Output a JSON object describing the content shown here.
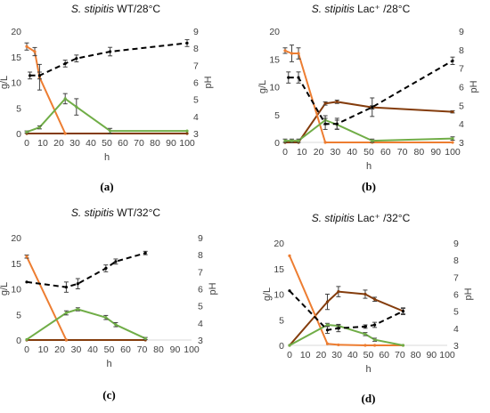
{
  "colors": {
    "ph": "#000000",
    "lactose": "#ed7d31",
    "ethanol": "#70ad47",
    "biomass": "#843c0c",
    "axis": "#d9d9d9",
    "text": "#404040"
  },
  "chart_data": [
    {
      "type": "line",
      "title_italic": "S. stipitis",
      "title_rest": " WT/28°C",
      "panel_label": "(a)",
      "xlabel": "h",
      "ylabel": "g/L",
      "y2label": "pH",
      "xlim": [
        0,
        100
      ],
      "xticks": [
        0,
        10,
        20,
        30,
        40,
        50,
        60,
        70,
        80,
        90,
        100
      ],
      "ylim": [
        0,
        20
      ],
      "yticks": [
        0,
        5,
        10,
        15,
        20
      ],
      "y2lim": [
        3,
        9
      ],
      "y2ticks": [
        3,
        4,
        5,
        6,
        7,
        8,
        9
      ],
      "series": [
        {
          "key": "ph",
          "axis": "right",
          "style": "dashed",
          "x": [
            2,
            8,
            24,
            31,
            52,
            100
          ],
          "y": [
            6.4,
            6.4,
            7.1,
            7.4,
            7.8,
            8.3
          ],
          "err": [
            0.2,
            0.2,
            0.2,
            0.2,
            0.25,
            0.2
          ]
        },
        {
          "key": "lactose",
          "axis": "left",
          "style": "solid",
          "x": [
            0,
            5,
            8,
            24
          ],
          "y": [
            17,
            16,
            11,
            0
          ],
          "err": [
            0.7,
            0.8,
            2.5,
            0
          ]
        },
        {
          "key": "ethanol",
          "axis": "left",
          "style": "solid",
          "x": [
            0,
            8,
            24,
            31,
            52,
            100
          ],
          "y": [
            0.3,
            1.2,
            6.8,
            5.2,
            0.5,
            0.5
          ],
          "err": [
            0.2,
            0.3,
            1.0,
            1.6,
            0.5,
            0
          ]
        },
        {
          "key": "biomass",
          "axis": "left",
          "style": "solid",
          "x": [
            0,
            100
          ],
          "y": [
            0,
            0
          ],
          "err": [
            0,
            0
          ]
        }
      ]
    },
    {
      "type": "line",
      "title_italic": "S. stipitis",
      "title_rest": " Lac⁺ /28°C",
      "panel_label": "(b)",
      "xlabel": "h",
      "ylabel": "g/L",
      "y2label": "pH",
      "xlim": [
        0,
        100
      ],
      "xticks": [
        0,
        10,
        20,
        30,
        40,
        50,
        60,
        70,
        80,
        90,
        100
      ],
      "ylim": [
        0,
        20
      ],
      "yticks": [
        0,
        5,
        10,
        15,
        20
      ],
      "y2lim": [
        3,
        9
      ],
      "y2ticks": [
        3,
        4,
        5,
        6,
        7,
        8,
        9
      ],
      "series": [
        {
          "key": "ph",
          "axis": "right",
          "style": "dashed",
          "x": [
            2,
            8,
            24,
            31,
            52,
            100
          ],
          "y": [
            6.5,
            6.5,
            4.0,
            4.0,
            4.9,
            7.4
          ],
          "err": [
            0.3,
            0.3,
            0.3,
            0.3,
            0.5,
            0.2
          ]
        },
        {
          "key": "lactose",
          "axis": "left",
          "style": "solid",
          "x": [
            0,
            4,
            8,
            24,
            52,
            100
          ],
          "y": [
            16.5,
            16,
            16,
            0,
            0,
            0
          ],
          "err": [
            0.5,
            1.5,
            1,
            0,
            0,
            0
          ]
        },
        {
          "key": "ethanol",
          "axis": "left",
          "style": "solid",
          "x": [
            0,
            4,
            8,
            24,
            31,
            52,
            100
          ],
          "y": [
            0.3,
            0.3,
            0.3,
            4,
            3.2,
            0.3,
            0.7
          ],
          "err": [
            0.3,
            0.3,
            0.3,
            0.8,
            0.8,
            0.3,
            0.3
          ]
        },
        {
          "key": "biomass",
          "axis": "left",
          "style": "solid",
          "x": [
            0,
            8,
            24,
            31,
            52,
            100
          ],
          "y": [
            0,
            0,
            7,
            7.3,
            6.3,
            5.5
          ],
          "err": [
            0,
            0,
            0.3,
            0.3,
            0.3,
            0.2
          ]
        }
      ]
    },
    {
      "type": "line",
      "title_italic": "S. stipitis",
      "title_rest": " WT/32°C",
      "panel_label": "(c)",
      "xlabel": "h",
      "ylabel": "g/L",
      "y2label": "pH",
      "xlim": [
        0,
        100
      ],
      "xticks": [
        0,
        10,
        20,
        30,
        40,
        50,
        60,
        70,
        80,
        90,
        100
      ],
      "ylim": [
        0,
        20
      ],
      "yticks": [
        0,
        5,
        10,
        15,
        20
      ],
      "y2lim": [
        3,
        9
      ],
      "y2ticks": [
        3,
        4,
        5,
        6,
        7,
        8,
        9
      ],
      "series": [
        {
          "key": "ph",
          "axis": "right",
          "style": "dashed",
          "x": [
            0,
            24,
            31,
            48,
            54,
            72
          ],
          "y": [
            6.4,
            6.1,
            6.3,
            7.2,
            7.6,
            8.1
          ],
          "err": [
            0,
            0.3,
            0.3,
            0.2,
            0.15,
            0.1
          ]
        },
        {
          "key": "lactose",
          "axis": "left",
          "style": "solid",
          "x": [
            0,
            24
          ],
          "y": [
            16.3,
            0
          ],
          "err": [
            0.3,
            0
          ]
        },
        {
          "key": "ethanol",
          "axis": "left",
          "style": "solid",
          "x": [
            0,
            24,
            31,
            48,
            54,
            72
          ],
          "y": [
            0.1,
            5.3,
            6,
            4.4,
            3,
            0.3
          ],
          "err": [
            0,
            0.4,
            0.3,
            0.4,
            0.4,
            0.2
          ]
        },
        {
          "key": "biomass",
          "axis": "left",
          "style": "solid",
          "x": [
            0,
            24,
            72
          ],
          "y": [
            0,
            0,
            0
          ],
          "err": [
            0,
            0,
            0
          ]
        }
      ]
    },
    {
      "type": "line",
      "title_italic": "S. stipitis",
      "title_rest": " Lac⁺ /32°C",
      "panel_label": "(d)",
      "xlabel": "h",
      "ylabel": "g/L",
      "y2label": "pH",
      "xlim": [
        0,
        100
      ],
      "xticks": [
        0,
        10,
        20,
        30,
        40,
        50,
        60,
        70,
        80,
        90,
        100
      ],
      "ylim": [
        0,
        20
      ],
      "yticks": [
        0,
        5,
        10,
        15,
        20
      ],
      "y2lim": [
        3,
        9
      ],
      "y2ticks": [
        3,
        4,
        5,
        6,
        7,
        8,
        9
      ],
      "series": [
        {
          "key": "ph",
          "axis": "right",
          "style": "dashed",
          "x": [
            0,
            24,
            31,
            48,
            54,
            72
          ],
          "y": [
            6.2,
            3.9,
            4.0,
            4.1,
            4.2,
            5.0
          ],
          "err": [
            0,
            0.2,
            0.2,
            0.1,
            0.15,
            0.2
          ]
        },
        {
          "key": "lactose",
          "axis": "left",
          "style": "solid",
          "x": [
            0,
            24,
            31,
            48,
            54,
            72
          ],
          "y": [
            17.5,
            0.3,
            0.1,
            0,
            0,
            0
          ],
          "err": [
            0,
            0,
            0,
            0,
            0,
            0
          ]
        },
        {
          "key": "ethanol",
          "axis": "left",
          "style": "solid",
          "x": [
            0,
            24,
            31,
            48,
            54,
            72
          ],
          "y": [
            0,
            4,
            3.8,
            2.2,
            1.1,
            0
          ],
          "err": [
            0,
            0.3,
            0.3,
            0.3,
            0.3,
            0
          ]
        },
        {
          "key": "biomass",
          "axis": "left",
          "style": "solid",
          "x": [
            0,
            24,
            31,
            48,
            54,
            72
          ],
          "y": [
            0,
            8.5,
            10.5,
            10,
            9,
            6.7
          ],
          "err": [
            0,
            1.5,
            1,
            0.8,
            0.4,
            0.5
          ]
        }
      ]
    }
  ]
}
